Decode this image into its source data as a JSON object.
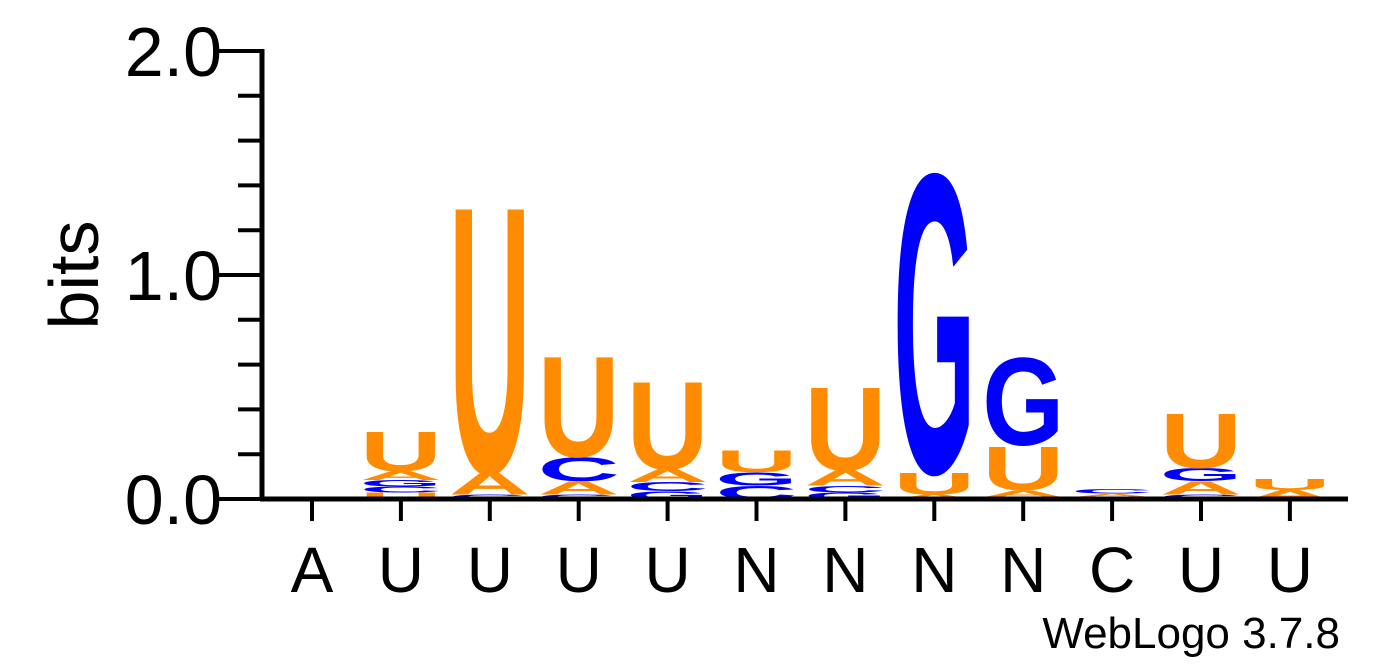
{
  "chart_data": {
    "type": "sequence-logo",
    "ylabel": "bits",
    "ylim": [
      0,
      2.0
    ],
    "yticks": [
      "0.0",
      "1.0",
      "2.0"
    ],
    "grid": false,
    "legend": "none",
    "colors": {
      "A": "#ff8c00",
      "U": "#ff8c00",
      "C": "#0000ff",
      "G": "#0000ff"
    },
    "positions": [
      "A",
      "U",
      "U",
      "U",
      "U",
      "N",
      "N",
      "N",
      "N",
      "C",
      "U",
      "U"
    ],
    "stacks": [
      [],
      [
        {
          "letter": "U",
          "bits": 0.03
        },
        {
          "letter": "C",
          "bits": 0.025
        },
        {
          "letter": "G",
          "bits": 0.03
        },
        {
          "letter": "A",
          "bits": 0.04
        },
        {
          "letter": "U",
          "bits": 0.18
        }
      ],
      [
        {
          "letter": "G",
          "bits": 0.02
        },
        {
          "letter": "A",
          "bits": 0.1
        },
        {
          "letter": "U",
          "bits": 1.22
        }
      ],
      [
        {
          "letter": "G",
          "bits": 0.02
        },
        {
          "letter": "A",
          "bits": 0.06
        },
        {
          "letter": "C",
          "bits": 0.11
        },
        {
          "letter": "U",
          "bits": 0.46
        }
      ],
      [
        {
          "letter": "G",
          "bits": 0.035
        },
        {
          "letter": "C",
          "bits": 0.04
        },
        {
          "letter": "A",
          "bits": 0.06
        },
        {
          "letter": "U",
          "bits": 0.4
        }
      ],
      [
        {
          "letter": "C",
          "bits": 0.06
        },
        {
          "letter": "G",
          "bits": 0.06
        },
        {
          "letter": "U",
          "bits": 0.1
        }
      ],
      [
        {
          "letter": "G",
          "bits": 0.03
        },
        {
          "letter": "C",
          "bits": 0.03
        },
        {
          "letter": "A",
          "bits": 0.07
        },
        {
          "letter": "U",
          "bits": 0.38
        }
      ],
      [
        {
          "letter": "A",
          "bits": 0.02
        },
        {
          "letter": "U",
          "bits": 0.1
        },
        {
          "letter": "G",
          "bits": 1.37
        }
      ],
      [
        {
          "letter": "C",
          "bits": 0.01
        },
        {
          "letter": "A",
          "bits": 0.03
        },
        {
          "letter": "U",
          "bits": 0.2
        },
        {
          "letter": "G",
          "bits": 0.4
        }
      ],
      [
        {
          "letter": "U",
          "bits": 0.01
        },
        {
          "letter": "A",
          "bits": 0.015
        },
        {
          "letter": "C",
          "bits": 0.02
        }
      ],
      [
        {
          "letter": "C",
          "bits": 0.02
        },
        {
          "letter": "A",
          "bits": 0.06
        },
        {
          "letter": "G",
          "bits": 0.06
        },
        {
          "letter": "U",
          "bits": 0.25
        }
      ],
      [
        {
          "letter": "A",
          "bits": 0.04
        },
        {
          "letter": "U",
          "bits": 0.05
        }
      ]
    ]
  },
  "footer": {
    "credit": "WebLogo 3.7.8"
  }
}
